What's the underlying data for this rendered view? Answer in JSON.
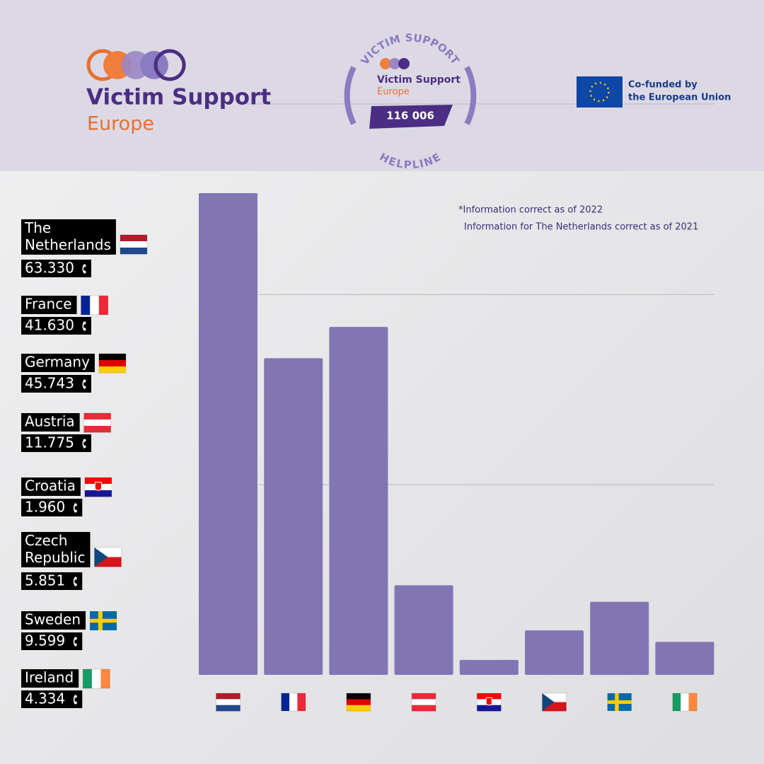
{
  "header": {
    "logo_title": "Victim Support",
    "logo_subtitle": "Europe",
    "badge_top": "VICTIM SUPPORT",
    "badge_name": "Victim Support",
    "badge_sub": "Europe",
    "badge_number": "116 006",
    "badge_bottom": "HELPLINE",
    "eu_line1": "Co-funded by",
    "eu_line2": "the European Union"
  },
  "chart_data": {
    "type": "bar",
    "notes": [
      "*Information correct as of 2022",
      "Information for The Netherlands correct  as of 2021"
    ],
    "categories": [
      "The Netherlands",
      "France",
      "Germany",
      "Austria",
      "Croatia",
      "Czech Republic",
      "Sweden",
      "Ireland"
    ],
    "values": [
      63330,
      41630,
      45743,
      11775,
      1960,
      5851,
      9599,
      4334
    ],
    "value_labels": [
      "63.330",
      "41.630",
      "45.743",
      "11.775",
      "1.960",
      "5.851",
      "9.599",
      "4.334"
    ],
    "color": "#8275b4",
    "ylim": [
      0,
      63330
    ],
    "grid_lines": [
      25000,
      50000
    ]
  }
}
